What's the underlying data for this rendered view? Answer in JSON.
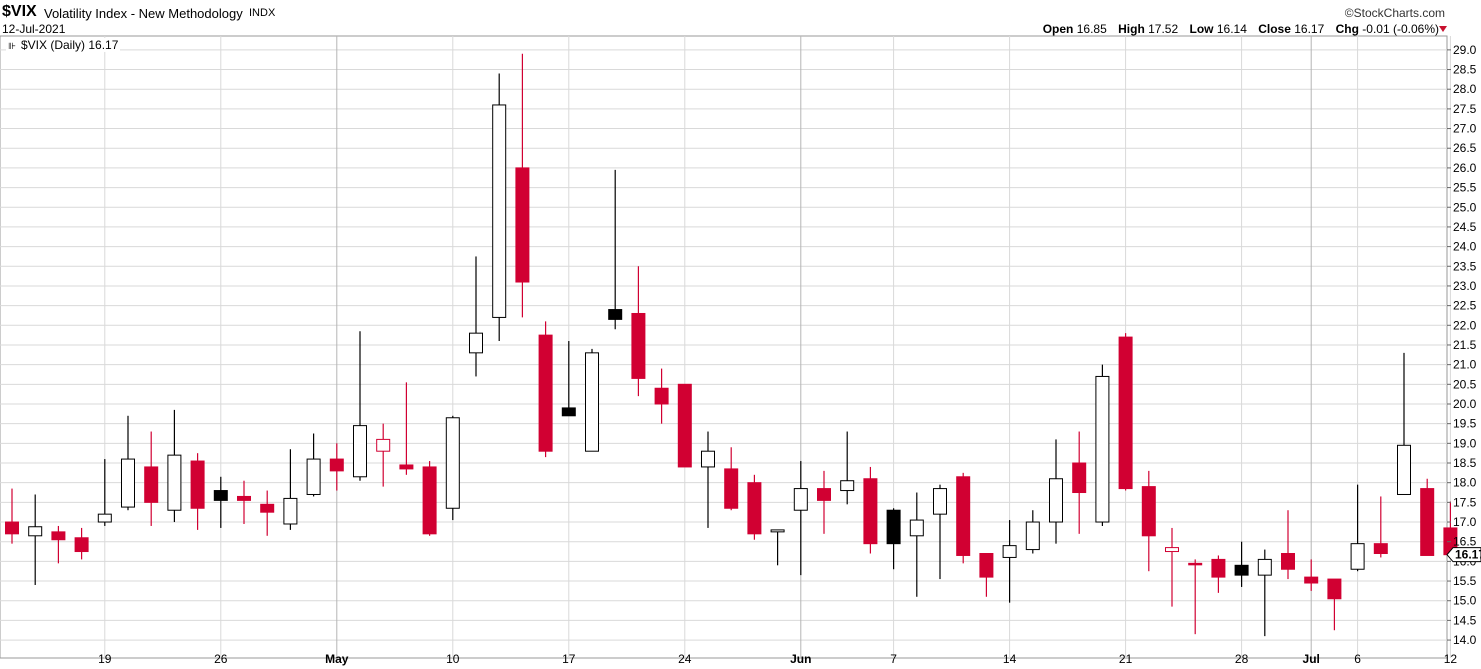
{
  "header": {
    "symbol": "$VIX",
    "name": "Volatility Index - New Methodology",
    "exchange": "INDX",
    "date": "12-Jul-2021",
    "brand": "©StockCharts.com",
    "open_label": "Open",
    "open": "16.85",
    "high_label": "High",
    "high": "17.52",
    "low_label": "Low",
    "low": "16.14",
    "close_label": "Close",
    "close": "16.17",
    "chg_label": "Chg",
    "chg": "-0.01 (-0.06%)"
  },
  "legend": {
    "text": "$VIX (Daily) 16.17"
  },
  "colors": {
    "up": "#ffffff",
    "down_red": "#d10032",
    "down_black": "#000000",
    "grid": "#d9d9d9"
  },
  "chart_data": {
    "type": "candlestick",
    "ylim": [
      13.9,
      29.2
    ],
    "y_ticks": [
      "14.0",
      "14.5",
      "15.0",
      "15.5",
      "16.0",
      "16.5",
      "17.0",
      "17.5",
      "18.0",
      "18.5",
      "19.0",
      "19.5",
      "20.0",
      "20.5",
      "21.0",
      "21.5",
      "22.0",
      "22.5",
      "23.0",
      "23.5",
      "24.0",
      "24.5",
      "25.0",
      "25.5",
      "26.0",
      "26.5",
      "27.0",
      "27.5",
      "28.0",
      "28.5",
      "29.0"
    ],
    "last_price": "16.17",
    "x_labels": [
      {
        "label": "19",
        "index": 4,
        "bold": false
      },
      {
        "label": "26",
        "index": 9,
        "bold": false
      },
      {
        "label": "May",
        "index": 14,
        "bold": true
      },
      {
        "label": "10",
        "index": 19,
        "bold": false
      },
      {
        "label": "17",
        "index": 24,
        "bold": false
      },
      {
        "label": "24",
        "index": 29,
        "bold": false
      },
      {
        "label": "Jun",
        "index": 34,
        "bold": true
      },
      {
        "label": "7",
        "index": 38,
        "bold": false
      },
      {
        "label": "14",
        "index": 43,
        "bold": false
      },
      {
        "label": "21",
        "index": 48,
        "bold": false
      },
      {
        "label": "28",
        "index": 53,
        "bold": false
      },
      {
        "label": "Jul",
        "index": 56,
        "bold": true
      },
      {
        "label": "6",
        "index": 58,
        "bold": false
      },
      {
        "label": "12",
        "index": 62,
        "bold": false
      }
    ],
    "candles": [
      {
        "o": 17.0,
        "h": 17.85,
        "l": 16.45,
        "c": 16.7,
        "color": "red"
      },
      {
        "o": 16.65,
        "h": 17.7,
        "l": 15.4,
        "c": 16.88,
        "color": "white"
      },
      {
        "o": 16.75,
        "h": 16.9,
        "l": 15.95,
        "c": 16.55,
        "color": "red"
      },
      {
        "o": 16.6,
        "h": 16.85,
        "l": 16.05,
        "c": 16.25,
        "color": "red"
      },
      {
        "o": 17.0,
        "h": 18.6,
        "l": 16.9,
        "c": 17.2,
        "color": "white"
      },
      {
        "o": 17.38,
        "h": 19.7,
        "l": 17.3,
        "c": 18.6,
        "color": "white"
      },
      {
        "o": 18.4,
        "h": 19.3,
        "l": 16.9,
        "c": 17.5,
        "color": "red"
      },
      {
        "o": 17.3,
        "h": 19.85,
        "l": 17.0,
        "c": 18.7,
        "color": "white"
      },
      {
        "o": 18.55,
        "h": 18.75,
        "l": 16.8,
        "c": 17.35,
        "color": "red"
      },
      {
        "o": 17.55,
        "h": 18.15,
        "l": 16.85,
        "c": 17.8,
        "color": "black"
      },
      {
        "o": 17.65,
        "h": 18.05,
        "l": 16.95,
        "c": 17.55,
        "color": "red"
      },
      {
        "o": 17.45,
        "h": 17.8,
        "l": 16.65,
        "c": 17.25,
        "color": "red"
      },
      {
        "o": 16.95,
        "h": 18.85,
        "l": 16.8,
        "c": 17.6,
        "color": "white"
      },
      {
        "o": 17.7,
        "h": 19.25,
        "l": 17.65,
        "c": 18.6,
        "color": "white"
      },
      {
        "o": 18.6,
        "h": 19.0,
        "l": 17.8,
        "c": 18.3,
        "color": "red"
      },
      {
        "o": 18.15,
        "h": 21.85,
        "l": 18.05,
        "c": 19.45,
        "color": "white"
      },
      {
        "o": 18.8,
        "h": 19.5,
        "l": 17.9,
        "c": 19.1,
        "color": "hollowred"
      },
      {
        "o": 18.45,
        "h": 20.55,
        "l": 18.2,
        "c": 18.35,
        "color": "red"
      },
      {
        "o": 18.4,
        "h": 18.55,
        "l": 16.65,
        "c": 16.7,
        "color": "red"
      },
      {
        "o": 17.35,
        "h": 19.7,
        "l": 17.05,
        "c": 19.65,
        "color": "white"
      },
      {
        "o": 21.3,
        "h": 23.75,
        "l": 20.7,
        "c": 21.8,
        "color": "white"
      },
      {
        "o": 22.2,
        "h": 28.4,
        "l": 21.6,
        "c": 27.6,
        "color": "white"
      },
      {
        "o": 26.0,
        "h": 28.9,
        "l": 22.2,
        "c": 23.1,
        "color": "red"
      },
      {
        "o": 21.75,
        "h": 22.1,
        "l": 18.65,
        "c": 18.8,
        "color": "red"
      },
      {
        "o": 19.9,
        "h": 21.6,
        "l": 19.7,
        "c": 19.7,
        "color": "black"
      },
      {
        "o": 18.8,
        "h": 21.4,
        "l": 18.85,
        "c": 21.3,
        "color": "white"
      },
      {
        "o": 22.4,
        "h": 25.95,
        "l": 21.9,
        "c": 22.15,
        "color": "black"
      },
      {
        "o": 22.3,
        "h": 23.5,
        "l": 20.2,
        "c": 20.65,
        "color": "red"
      },
      {
        "o": 20.4,
        "h": 20.9,
        "l": 19.5,
        "c": 20.0,
        "color": "red"
      },
      {
        "o": 20.5,
        "h": 20.5,
        "l": 18.4,
        "c": 18.4,
        "color": "red"
      },
      {
        "o": 18.4,
        "h": 19.3,
        "l": 16.85,
        "c": 18.8,
        "color": "white"
      },
      {
        "o": 18.35,
        "h": 18.9,
        "l": 17.3,
        "c": 17.35,
        "color": "red"
      },
      {
        "o": 18.0,
        "h": 18.2,
        "l": 16.55,
        "c": 16.7,
        "color": "red"
      },
      {
        "o": 16.8,
        "h": 16.8,
        "l": 15.9,
        "c": 16.75,
        "color": "white"
      },
      {
        "o": 17.3,
        "h": 18.55,
        "l": 15.65,
        "c": 17.85,
        "color": "white"
      },
      {
        "o": 17.85,
        "h": 18.3,
        "l": 16.7,
        "c": 17.55,
        "color": "red"
      },
      {
        "o": 17.8,
        "h": 19.3,
        "l": 17.45,
        "c": 18.05,
        "color": "white"
      },
      {
        "o": 18.1,
        "h": 18.4,
        "l": 16.2,
        "c": 16.45,
        "color": "red"
      },
      {
        "o": 16.45,
        "h": 17.35,
        "l": 15.8,
        "c": 17.3,
        "color": "black"
      },
      {
        "o": 16.65,
        "h": 17.75,
        "l": 15.1,
        "c": 17.05,
        "color": "white"
      },
      {
        "o": 17.2,
        "h": 17.95,
        "l": 15.55,
        "c": 17.85,
        "color": "white"
      },
      {
        "o": 18.15,
        "h": 18.25,
        "l": 15.95,
        "c": 16.15,
        "color": "red"
      },
      {
        "o": 16.2,
        "h": 16.2,
        "l": 15.1,
        "c": 15.6,
        "color": "red"
      },
      {
        "o": 16.1,
        "h": 17.05,
        "l": 14.95,
        "c": 16.4,
        "color": "white"
      },
      {
        "o": 16.3,
        "h": 17.3,
        "l": 16.2,
        "c": 17.0,
        "color": "white"
      },
      {
        "o": 17.0,
        "h": 19.1,
        "l": 16.45,
        "c": 18.1,
        "color": "white"
      },
      {
        "o": 18.5,
        "h": 19.3,
        "l": 16.7,
        "c": 17.75,
        "color": "red"
      },
      {
        "o": 17.0,
        "h": 21.0,
        "l": 16.9,
        "c": 20.7,
        "color": "white"
      },
      {
        "o": 21.7,
        "h": 21.8,
        "l": 17.8,
        "c": 17.85,
        "color": "red"
      },
      {
        "o": 17.9,
        "h": 18.3,
        "l": 15.75,
        "c": 16.65,
        "color": "red"
      },
      {
        "o": 16.35,
        "h": 16.85,
        "l": 14.85,
        "c": 16.25,
        "color": "hollowred"
      },
      {
        "o": 15.95,
        "h": 16.05,
        "l": 14.15,
        "c": 15.95,
        "color": "red"
      },
      {
        "o": 16.05,
        "h": 16.15,
        "l": 15.2,
        "c": 15.6,
        "color": "red"
      },
      {
        "o": 15.9,
        "h": 16.5,
        "l": 15.35,
        "c": 15.65,
        "color": "black"
      },
      {
        "o": 15.65,
        "h": 16.3,
        "l": 14.1,
        "c": 16.05,
        "color": "white"
      },
      {
        "o": 16.2,
        "h": 17.3,
        "l": 15.55,
        "c": 15.8,
        "color": "red"
      },
      {
        "o": 15.6,
        "h": 16.05,
        "l": 15.25,
        "c": 15.45,
        "color": "red"
      },
      {
        "o": 15.55,
        "h": 15.55,
        "l": 14.25,
        "c": 15.05,
        "color": "red"
      },
      {
        "o": 15.8,
        "h": 17.95,
        "l": 15.75,
        "c": 16.45,
        "color": "white"
      },
      {
        "o": 16.45,
        "h": 17.65,
        "l": 16.1,
        "c": 16.2,
        "color": "red"
      },
      {
        "o": 17.7,
        "h": 21.3,
        "l": 17.7,
        "c": 18.95,
        "color": "white"
      },
      {
        "o": 17.85,
        "h": 18.1,
        "l": 16.15,
        "c": 16.15,
        "color": "red"
      },
      {
        "o": 16.85,
        "h": 17.52,
        "l": 16.14,
        "c": 16.17,
        "color": "red"
      }
    ]
  }
}
